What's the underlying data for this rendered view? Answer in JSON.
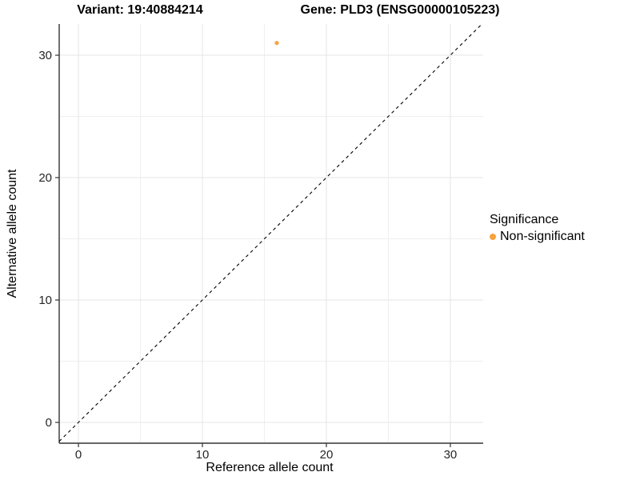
{
  "titles": {
    "variant": "Variant: 19:40884214",
    "gene": "Gene: PLD3 (ENSG00000105223)"
  },
  "axes": {
    "x_label": "Reference allele count",
    "y_label": "Alternative allele count"
  },
  "legend": {
    "title": "Significance",
    "items": [
      {
        "label": "Non-significant",
        "color": "#F8A23C"
      }
    ]
  },
  "colors": {
    "point": "#F8A23C",
    "grid_major": "#e4e4e4",
    "grid_minor": "#f0f0f0",
    "axis_line": "#333333",
    "tick_text": "#262626",
    "reference_line": "#000000",
    "background": "#ffffff"
  },
  "chart_data": {
    "type": "scatter",
    "title": "Variant: 19:40884214 | Gene: PLD3 (ENSG00000105223)",
    "xlabel": "Reference allele count",
    "ylabel": "Alternative allele count",
    "xlim": [
      -1.55,
      32.65
    ],
    "ylim": [
      -1.7,
      32.55
    ],
    "x_ticks": [
      0,
      10,
      20,
      30
    ],
    "y_ticks": [
      0,
      10,
      20,
      30
    ],
    "x_minor_ticks": [
      5,
      15,
      25
    ],
    "y_minor_ticks": [
      5,
      15,
      25
    ],
    "grid": true,
    "legend_position": "right",
    "series": [
      {
        "name": "Non-significant",
        "color": "#F8A23C",
        "points": [
          {
            "x": 16,
            "y": 31
          }
        ]
      }
    ],
    "reference_line": {
      "slope": 1,
      "intercept": 0,
      "style": "dashed"
    }
  }
}
